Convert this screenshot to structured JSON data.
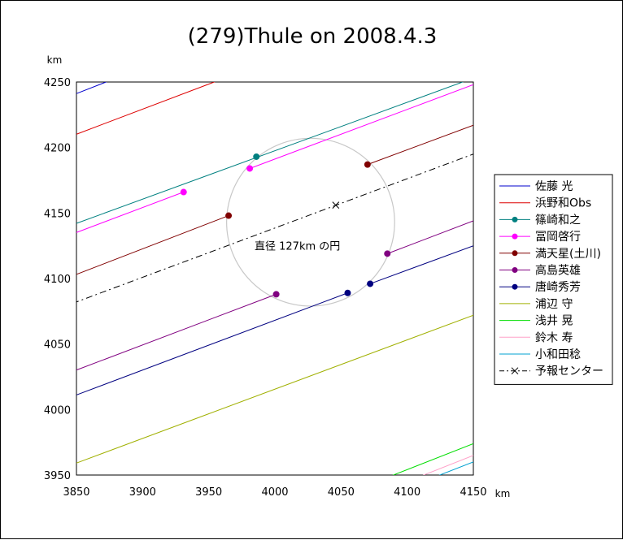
{
  "chart_data": {
    "type": "line",
    "title": "(279)Thule on 2008.4.3",
    "xlabel": "",
    "ylabel": "",
    "x_unit": "km",
    "y_unit": "km",
    "xlim": [
      3850,
      4150
    ],
    "ylim": [
      3950,
      4250
    ],
    "x_ticks": [
      3850,
      3900,
      3950,
      4000,
      4050,
      4100,
      4150
    ],
    "y_ticks": [
      3950,
      4000,
      4050,
      4100,
      4150,
      4200,
      4250
    ],
    "grid": false,
    "legend_position": "right",
    "series": [
      {
        "name": "佐藤 光",
        "color": "#0000cc",
        "marker": "none",
        "x": [
          3847,
          3880
        ],
        "y": [
          4240,
          4253
        ]
      },
      {
        "name": "浜野和Obs",
        "color": "#dd0000",
        "marker": "none",
        "x": [
          3847,
          3962
        ],
        "y": [
          4209,
          4253
        ]
      },
      {
        "name": "篠崎和之",
        "color": "#008080",
        "marker": "circle",
        "x": [
          3986
        ],
        "y": [
          4193
        ]
      },
      {
        "name": "冨岡啓行",
        "color": "#ff00ff",
        "marker": "circle",
        "x": [
          3931,
          3981
        ],
        "y": [
          4166,
          4184
        ]
      },
      {
        "name": "満天星(土川)",
        "color": "#800000",
        "marker": "circle",
        "x": [
          3965,
          4070
        ],
        "y": [
          4148,
          4187
        ]
      },
      {
        "name": "高島英雄",
        "color": "#800080",
        "marker": "circle",
        "x": [
          4001,
          4085
        ],
        "y": [
          4088,
          4119
        ]
      },
      {
        "name": "唐崎秀芳",
        "color": "#000080",
        "marker": "circle",
        "x": [
          4055,
          4072
        ],
        "y": [
          4089,
          4096
        ]
      },
      {
        "name": "浦辺 守",
        "color": "#a0b000",
        "marker": "none",
        "x": [
          3847,
          4150
        ],
        "y": [
          3958,
          4072
        ]
      },
      {
        "name": "浅井 晃",
        "color": "#00dd00",
        "marker": "none",
        "x": [
          4082,
          4150
        ],
        "y": [
          3947,
          3974
        ]
      },
      {
        "name": "鈴木 寿",
        "color": "#ffa0c8",
        "marker": "none",
        "x": [
          4105,
          4150
        ],
        "y": [
          3947,
          3965
        ]
      },
      {
        "name": "小和田稔",
        "color": "#00a0d0",
        "marker": "none",
        "x": [
          4117,
          4150
        ],
        "y": [
          3947,
          3960
        ]
      },
      {
        "name": "予報センター",
        "color": "#000000",
        "marker": "x",
        "x": [
          4046
        ],
        "y": [
          4156
        ]
      }
    ],
    "chords": [
      {
        "series": "篠崎和之",
        "color": "#008080",
        "x": [
          3847,
          4150
        ],
        "y": [
          4141,
          4253
        ],
        "dash": "none"
      },
      {
        "series": "冨岡啓行",
        "color": "#ff00ff",
        "x": [
          3847,
          3931
        ],
        "y": [
          4134,
          4166
        ],
        "dash": "none"
      },
      {
        "series": "冨岡啓行",
        "color": "#ff00ff",
        "x": [
          3981,
          4150
        ],
        "y": [
          4184,
          4248
        ],
        "dash": "none"
      },
      {
        "series": "満天星(土川)",
        "color": "#800000",
        "x": [
          3847,
          3965
        ],
        "y": [
          4102,
          4148
        ],
        "dash": "none"
      },
      {
        "series": "満天星(土川)",
        "color": "#800000",
        "x": [
          4070,
          4150
        ],
        "y": [
          4187,
          4217
        ],
        "dash": "none"
      },
      {
        "series": "高島英雄",
        "color": "#800080",
        "x": [
          3847,
          4001
        ],
        "y": [
          4029,
          4088
        ],
        "dash": "none"
      },
      {
        "series": "高島英雄",
        "color": "#800080",
        "x": [
          4085,
          4150
        ],
        "y": [
          4119,
          4144
        ],
        "dash": "none"
      },
      {
        "series": "唐崎秀芳",
        "color": "#000080",
        "x": [
          3847,
          4055
        ],
        "y": [
          4010,
          4089
        ],
        "dash": "none"
      },
      {
        "series": "唐崎秀芳",
        "color": "#000080",
        "x": [
          4072,
          4150
        ],
        "y": [
          4096,
          4125
        ],
        "dash": "none"
      },
      {
        "series": "予報センター",
        "color": "#000000",
        "x": [
          3847,
          4150
        ],
        "y": [
          4081,
          4195
        ],
        "dash": "dashdot"
      }
    ],
    "circle": {
      "cx": 4027,
      "cy": 4143,
      "diameter": 127,
      "color": "#c8c8c8"
    },
    "annotation": "直径 127km の円",
    "annotation_at": [
      4017,
      4122
    ]
  }
}
